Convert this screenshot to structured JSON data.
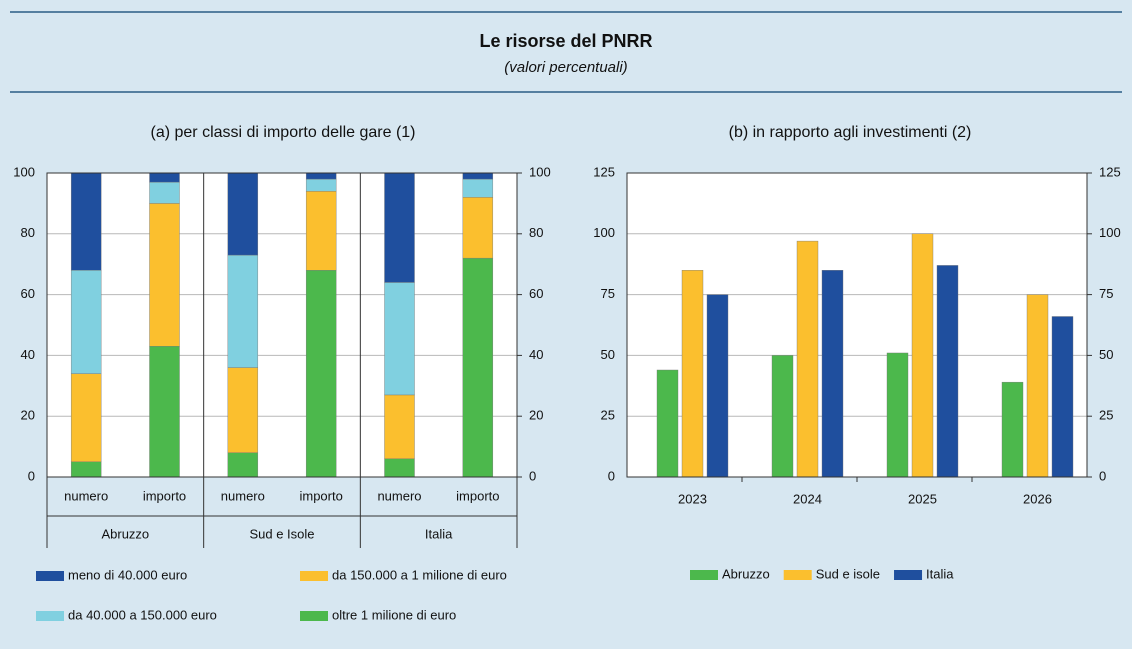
{
  "header": {
    "title": "Le risorse del PNRR",
    "subtitle": "(valori percentuali)"
  },
  "chart_data": [
    {
      "type": "stacked_bar",
      "title": "(a) per classi di importo delle gare (1)",
      "categories": [
        "numero",
        "importo",
        "numero",
        "importo",
        "numero",
        "importo"
      ],
      "groups": [
        "Abruzzo",
        "Sud e Isole",
        "Italia"
      ],
      "series": [
        {
          "name": "oltre 1 milione di euro",
          "color": "#4cb84c",
          "values": [
            5,
            43,
            8,
            68,
            6,
            72
          ]
        },
        {
          "name": "da 150.000 a 1 milione di euro",
          "color": "#fbbf2e",
          "values": [
            29,
            47,
            28,
            26,
            21,
            20
          ]
        },
        {
          "name": "da 40.000 a 150.000 euro",
          "color": "#80d0e0",
          "values": [
            34,
            7,
            37,
            4,
            37,
            6
          ]
        },
        {
          "name": "meno di 40.000 euro",
          "color": "#1f4f9e",
          "values": [
            32,
            3,
            27,
            2,
            36,
            2
          ]
        }
      ],
      "ylim": [
        0,
        100
      ],
      "yticks": [
        0,
        20,
        40,
        60,
        80,
        100
      ],
      "y2lim": [
        0,
        100
      ],
      "y2ticks": [
        0,
        20,
        40,
        60,
        80,
        100
      ],
      "grid": true
    },
    {
      "type": "bar",
      "title": "(b) in rapporto agli investimenti (2)",
      "categories": [
        "2023",
        "2024",
        "2025",
        "2026"
      ],
      "series": [
        {
          "name": "Abruzzo",
          "color": "#4cb84c",
          "values": [
            44,
            50,
            51,
            39
          ]
        },
        {
          "name": "Sud e isole",
          "color": "#fbbf2e",
          "values": [
            85,
            97,
            100,
            75
          ]
        },
        {
          "name": "Italia",
          "color": "#1f4f9e",
          "values": [
            75,
            85,
            87,
            66
          ]
        }
      ],
      "ylim": [
        0,
        125
      ],
      "yticks": [
        0,
        25,
        50,
        75,
        100,
        125
      ],
      "y2lim": [
        0,
        125
      ],
      "y2ticks": [
        0,
        25,
        50,
        75,
        100,
        125
      ],
      "grid": true
    }
  ]
}
